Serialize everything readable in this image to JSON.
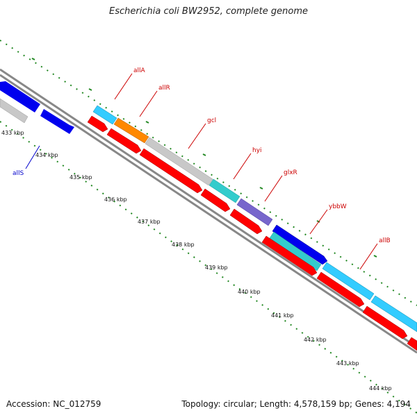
{
  "title": "Escherichia coli BW2952, complete genome",
  "footer": {
    "accession": "Accession: NC_012759",
    "summary": "Topology: circular; Length: 4,578,159 bp; Genes: 4,194"
  },
  "scale_labels": [
    "433 kbp",
    "434 kbp",
    "435 kbp",
    "436 kbp",
    "437 kbp",
    "438 kbp",
    "439 kbp",
    "440 kbp",
    "441 kbp",
    "442 kbp",
    "443 kbp",
    "444 kbp"
  ],
  "genes": [
    {
      "name": "allA",
      "color": "#cc0000"
    },
    {
      "name": "allR",
      "color": "#cc0000"
    },
    {
      "name": "gcl",
      "color": "#cc0000"
    },
    {
      "name": "hyi",
      "color": "#cc0000"
    },
    {
      "name": "glxR",
      "color": "#cc0000"
    },
    {
      "name": "ybbW",
      "color": "#cc0000"
    },
    {
      "name": "allB",
      "color": "#cc0000"
    },
    {
      "name": "allS",
      "color": "#0000cc"
    }
  ],
  "colors": {
    "backbone": "#888888",
    "cds_red": "#ff0000",
    "cds_blue": "#0000ee",
    "cds_cyan": "#33ccff",
    "cds_teal": "#33cccc",
    "cds_orange": "#ff8800",
    "cds_gray": "#c8c8c8",
    "cds_purple": "#7766cc",
    "tick": "#228822"
  }
}
